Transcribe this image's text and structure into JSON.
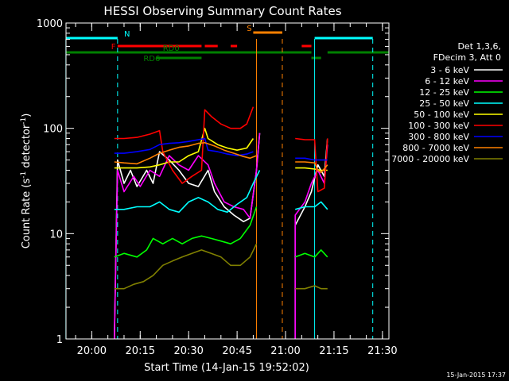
{
  "chart_data": {
    "type": "line",
    "title": "HESSI Observing Summary Count Rates",
    "xlabel": "Start Time (14-Jan-15 19:52:02)",
    "ylabel_parts": [
      "Count Rate (s",
      "-1",
      " detector",
      "-1",
      ")"
    ],
    "y_scale": "log",
    "ylim": [
      1,
      1000
    ],
    "xlim": [
      "19:52:02",
      "21:32:00"
    ],
    "x_ticks": [
      "20:00",
      "20:15",
      "20:30",
      "20:45",
      "21:00",
      "21:15",
      "21:30"
    ],
    "y_ticks": [
      "1",
      "10",
      "100",
      "1000"
    ],
    "legend_header": [
      "Det 1,3,6,",
      "FDecim 3, Att 0"
    ],
    "legend_position": "right",
    "footer_date": "15-Jan-2015 17:37",
    "flags": {
      "N": {
        "label": "N",
        "color": "#00ffff",
        "intervals": [
          [
            "19:52",
            "20:08"
          ],
          [
            "21:09",
            "21:27"
          ]
        ]
      },
      "F": {
        "label": "F",
        "color": "#ff0000",
        "intervals": [
          [
            "20:08",
            "20:34"
          ],
          [
            "20:35",
            "20:39"
          ],
          [
            "20:43",
            "20:45"
          ],
          [
            "21:05",
            "21:08"
          ]
        ]
      },
      "RD0": {
        "label": "RD0",
        "color": "#008000",
        "intervals": [
          [
            "19:52",
            "21:08"
          ],
          [
            "21:13",
            "21:32"
          ]
        ]
      },
      "RD6": {
        "label": "RD6",
        "color": "#008000",
        "intervals": [
          [
            "20:20",
            "20:34"
          ],
          [
            "21:08",
            "21:11"
          ]
        ]
      },
      "S": {
        "label": "S",
        "color": "#ff8000",
        "intervals": [
          [
            "20:50",
            "20:59"
          ]
        ]
      }
    },
    "vertical_lines": [
      {
        "time": "19:52",
        "color": "#00ffff",
        "style": "solid"
      },
      {
        "time": "20:08",
        "color": "#00ffff",
        "style": "dashed"
      },
      {
        "time": "20:51",
        "color": "#ff8000",
        "style": "solid"
      },
      {
        "time": "20:59",
        "color": "#ff8000",
        "style": "dashed"
      },
      {
        "time": "21:09",
        "color": "#00ffff",
        "style": "solid"
      },
      {
        "time": "21:27",
        "color": "#00ffff",
        "style": "dashed"
      }
    ],
    "series": [
      {
        "name": "3 - 6 keV",
        "color": "#ffffff",
        "segments": [
          [
            [
              "20:07",
              1
            ],
            [
              "20:08",
              50
            ],
            [
              "20:10",
              30
            ],
            [
              "20:12",
              40
            ],
            [
              "20:14",
              28
            ],
            [
              "20:17",
              40
            ],
            [
              "20:19",
              30
            ],
            [
              "20:21",
              60
            ],
            [
              "20:24",
              50
            ],
            [
              "20:27",
              40
            ],
            [
              "20:30",
              30
            ],
            [
              "20:33",
              28
            ],
            [
              "20:36",
              40
            ],
            [
              "20:38",
              25
            ],
            [
              "20:41",
              18
            ],
            [
              "20:44",
              15
            ],
            [
              "20:47",
              13
            ],
            [
              "20:49",
              14
            ],
            [
              "20:51",
              40
            ],
            [
              "20:52",
              90
            ]
          ],
          [
            [
              "21:03",
              1
            ],
            [
              "21:03",
              12
            ],
            [
              "21:06",
              18
            ],
            [
              "21:08",
              25
            ],
            [
              "21:10",
              45
            ],
            [
              "21:12",
              35
            ],
            [
              "21:13",
              80
            ]
          ]
        ]
      },
      {
        "name": "6 - 12 keV",
        "color": "#ff00ff",
        "segments": [
          [
            [
              "20:07",
              1
            ],
            [
              "20:08",
              40
            ],
            [
              "20:10",
              25
            ],
            [
              "20:13",
              35
            ],
            [
              "20:15",
              28
            ],
            [
              "20:18",
              40
            ],
            [
              "20:21",
              35
            ],
            [
              "20:24",
              55
            ],
            [
              "20:27",
              45
            ],
            [
              "20:30",
              40
            ],
            [
              "20:33",
              55
            ],
            [
              "20:36",
              45
            ],
            [
              "20:38",
              30
            ],
            [
              "20:41",
              20
            ],
            [
              "20:44",
              18
            ],
            [
              "20:47",
              17
            ],
            [
              "20:49",
              14
            ],
            [
              "20:51",
              40
            ],
            [
              "20:52",
              90
            ]
          ],
          [
            [
              "21:03",
              1
            ],
            [
              "21:03",
              15
            ],
            [
              "21:06",
              20
            ],
            [
              "21:08",
              30
            ],
            [
              "21:10",
              40
            ],
            [
              "21:12",
              30
            ],
            [
              "21:13",
              70
            ]
          ]
        ]
      },
      {
        "name": "12 - 25 keV",
        "color": "#00ff00",
        "segments": [
          [
            [
              "20:07",
              6
            ],
            [
              "20:10",
              6.5
            ],
            [
              "20:14",
              6
            ],
            [
              "20:17",
              7
            ],
            [
              "20:19",
              9
            ],
            [
              "20:22",
              8
            ],
            [
              "20:25",
              9
            ],
            [
              "20:28",
              8
            ],
            [
              "20:31",
              9
            ],
            [
              "20:34",
              9.5
            ],
            [
              "20:37",
              9
            ],
            [
              "20:40",
              8.5
            ],
            [
              "20:43",
              8
            ],
            [
              "20:46",
              9
            ],
            [
              "20:49",
              12
            ],
            [
              "20:51",
              18
            ]
          ],
          [
            [
              "21:03",
              6
            ],
            [
              "21:06",
              6.5
            ],
            [
              "21:09",
              6
            ],
            [
              "21:11",
              7
            ],
            [
              "21:13",
              6
            ]
          ]
        ]
      },
      {
        "name": "25 - 50 keV",
        "color": "#00ffff",
        "segments": [
          [
            [
              "20:07",
              17
            ],
            [
              "20:10",
              17
            ],
            [
              "20:14",
              18
            ],
            [
              "20:18",
              18
            ],
            [
              "20:21",
              20
            ],
            [
              "20:24",
              17
            ],
            [
              "20:27",
              16
            ],
            [
              "20:30",
              20
            ],
            [
              "20:33",
              22
            ],
            [
              "20:36",
              20
            ],
            [
              "20:39",
              17
            ],
            [
              "20:42",
              16
            ],
            [
              "20:45",
              19
            ],
            [
              "20:48",
              22
            ],
            [
              "20:50",
              30
            ],
            [
              "20:52",
              40
            ]
          ],
          [
            [
              "21:03",
              17
            ],
            [
              "21:06",
              18
            ],
            [
              "21:09",
              18
            ],
            [
              "21:11",
              20
            ],
            [
              "21:13",
              17
            ]
          ]
        ]
      },
      {
        "name": "50 - 100 keV",
        "color": "#ffff00",
        "segments": [
          [
            [
              "20:07",
              42
            ],
            [
              "20:10",
              42
            ],
            [
              "20:14",
              42
            ],
            [
              "20:18",
              43
            ],
            [
              "20:21",
              45
            ],
            [
              "20:24",
              48
            ],
            [
              "20:27",
              48
            ],
            [
              "20:30",
              55
            ],
            [
              "20:33",
              60
            ],
            [
              "20:35",
              100
            ],
            [
              "20:36",
              80
            ],
            [
              "20:39",
              70
            ],
            [
              "20:42",
              65
            ],
            [
              "20:45",
              62
            ],
            [
              "20:48",
              65
            ],
            [
              "20:50",
              80
            ]
          ],
          [
            [
              "21:03",
              42
            ],
            [
              "21:06",
              42
            ],
            [
              "21:09",
              41
            ],
            [
              "21:11",
              40
            ],
            [
              "21:13",
              40
            ]
          ]
        ]
      },
      {
        "name": "100 - 300 keV",
        "color": "#ff0000",
        "segments": [
          [
            [
              "20:07",
              80
            ],
            [
              "20:10",
              80
            ],
            [
              "20:14",
              82
            ],
            [
              "20:18",
              88
            ],
            [
              "20:21",
              95
            ],
            [
              "20:22",
              60
            ],
            [
              "20:25",
              40
            ],
            [
              "20:28",
              30
            ],
            [
              "20:31",
              35
            ],
            [
              "20:34",
              40
            ],
            [
              "20:35",
              150
            ],
            [
              "20:37",
              130
            ],
            [
              "20:40",
              110
            ],
            [
              "20:43",
              100
            ],
            [
              "20:46",
              100
            ],
            [
              "20:48",
              110
            ],
            [
              "20:50",
              160
            ]
          ],
          [
            [
              "21:03",
              80
            ],
            [
              "21:06",
              78
            ],
            [
              "21:09",
              78
            ],
            [
              "21:10",
              25
            ],
            [
              "21:12",
              27
            ],
            [
              "21:13",
              80
            ]
          ]
        ]
      },
      {
        "name": "300 - 800 keV",
        "color": "#0000ff",
        "segments": [
          [
            [
              "20:07",
              58
            ],
            [
              "20:10",
              58
            ],
            [
              "20:14",
              60
            ],
            [
              "20:18",
              63
            ],
            [
              "20:21",
              70
            ],
            [
              "20:24",
              72
            ],
            [
              "20:27",
              73
            ],
            [
              "20:30",
              75
            ],
            [
              "20:33",
              78
            ],
            [
              "20:35",
              80
            ],
            [
              "20:36",
              62
            ],
            [
              "20:39",
              60
            ],
            [
              "20:42",
              57
            ],
            [
              "20:45",
              55
            ],
            [
              "20:48",
              57
            ],
            [
              "20:50",
              60
            ]
          ],
          [
            [
              "21:03",
              52
            ],
            [
              "21:06",
              52
            ],
            [
              "21:09",
              50
            ],
            [
              "21:11",
              50
            ],
            [
              "21:13",
              50
            ]
          ]
        ]
      },
      {
        "name": "800 - 7000 keV",
        "color": "#ff8000",
        "segments": [
          [
            [
              "20:07",
              48
            ],
            [
              "20:10",
              47
            ],
            [
              "20:14",
              46
            ],
            [
              "20:18",
              52
            ],
            [
              "20:21",
              58
            ],
            [
              "20:24",
              62
            ],
            [
              "20:27",
              66
            ],
            [
              "20:30",
              68
            ],
            [
              "20:33",
              72
            ],
            [
              "20:35",
              73
            ],
            [
              "20:38",
              68
            ],
            [
              "20:41",
              62
            ],
            [
              "20:44",
              58
            ],
            [
              "20:47",
              54
            ],
            [
              "20:49",
              52
            ],
            [
              "20:51",
              55
            ]
          ],
          [
            [
              "21:03",
              48
            ],
            [
              "21:06",
              48
            ],
            [
              "21:09",
              47
            ],
            [
              "21:10",
              40
            ],
            [
              "21:11",
              38
            ],
            [
              "21:13",
              45
            ]
          ]
        ]
      },
      {
        "name": "7000 - 20000 keV",
        "color": "#808000",
        "segments": [
          [
            [
              "20:07",
              3
            ],
            [
              "20:10",
              3
            ],
            [
              "20:13",
              3.3
            ],
            [
              "20:16",
              3.5
            ],
            [
              "20:19",
              4
            ],
            [
              "20:22",
              5
            ],
            [
              "20:25",
              5.5
            ],
            [
              "20:28",
              6
            ],
            [
              "20:31",
              6.5
            ],
            [
              "20:34",
              7
            ],
            [
              "20:37",
              6.5
            ],
            [
              "20:40",
              6
            ],
            [
              "20:43",
              5
            ],
            [
              "20:46",
              5
            ],
            [
              "20:49",
              6
            ],
            [
              "20:51",
              8
            ]
          ],
          [
            [
              "21:03",
              3
            ],
            [
              "21:06",
              3
            ],
            [
              "21:09",
              3.2
            ],
            [
              "21:11",
              3
            ],
            [
              "21:13",
              3
            ]
          ]
        ]
      }
    ]
  }
}
